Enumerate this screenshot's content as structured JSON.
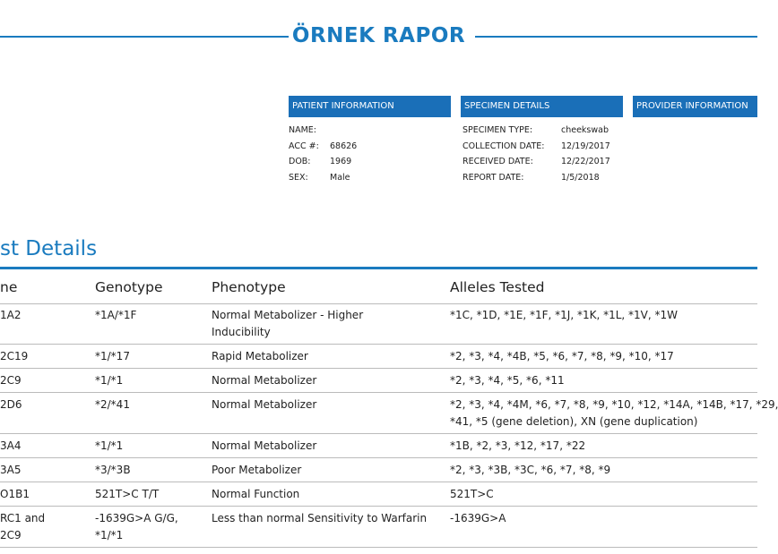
{
  "header": {
    "title": "ÖRNEK RAPOR"
  },
  "patient": {
    "heading": "PATIENT INFORMATION",
    "fields": [
      {
        "label": "NAME:"
      },
      {
        "label": "ACC #:",
        "value": "68626"
      },
      {
        "label": "DOB:",
        "value": "1969"
      },
      {
        "label": "SEX:",
        "value": "Male"
      }
    ]
  },
  "specimen": {
    "heading": "SPECIMEN DETAILS",
    "fields": [
      {
        "label": "SPECIMEN TYPE:",
        "value": "cheekswab"
      },
      {
        "label": "COLLECTION DATE:",
        "value": "12/19/2017"
      },
      {
        "label": "RECEIVED DATE:",
        "value": "12/22/2017"
      },
      {
        "label": "REPORT DATE:",
        "value": "1/5/2018"
      }
    ]
  },
  "provider": {
    "heading": "PROVIDER INFORMATION"
  },
  "table": {
    "title": "st Details",
    "columns": [
      "ne",
      "Genotype",
      "Phenotype",
      "Alleles Tested"
    ],
    "rows": [
      [
        "1A2",
        "*1A/*1F",
        [
          "Normal Metabolizer - Higher",
          "Inducibility"
        ],
        "*1C, *1D, *1E, *1F, *1J, *1K, *1L, *1V, *1W"
      ],
      [
        "2C19",
        "*1/*17",
        "Rapid Metabolizer",
        "*2, *3, *4, *4B, *5, *6, *7, *8, *9, *10, *17"
      ],
      [
        "2C9",
        "*1/*1",
        "Normal Metabolizer",
        "*2, *3, *4, *5, *6, *11"
      ],
      [
        "2D6",
        "*2/*41",
        "Normal Metabolizer",
        [
          "*2, *3, *4, *4M, *6, *7, *8, *9, *10, *12, *14A, *14B, *17, *29,",
          "*41, *5 (gene deletion), XN (gene duplication)"
        ]
      ],
      [
        "3A4",
        "*1/*1",
        "Normal Metabolizer",
        "*1B, *2, *3, *12, *17, *22"
      ],
      [
        "3A5",
        "*3/*3B",
        "Poor Metabolizer",
        "*2, *3, *3B, *3C, *6, *7, *8, *9"
      ],
      [
        "O1B1",
        "521T>C T/T",
        "Normal Function",
        "521T>C"
      ],
      [
        [
          "RC1 and",
          "2C9"
        ],
        [
          "-1639G>A G/G,",
          "*1/*1"
        ],
        "Less than normal Sensitivity to Warfarin",
        "-1639G>A"
      ]
    ]
  }
}
